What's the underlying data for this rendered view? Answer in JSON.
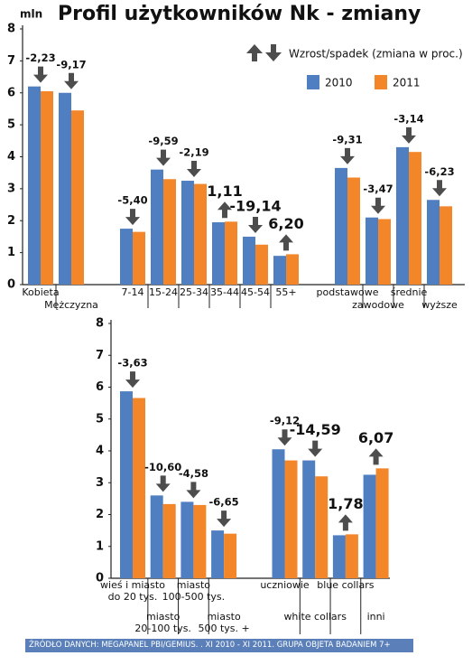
{
  "chart_data": [
    {
      "type": "bar",
      "title": "Profil użytkowników Nk - zmiany",
      "y_unit": "mln",
      "legend_title": "Wzrost/spadek (zmiana w proc.)",
      "categories": [
        "Kobieta",
        "Mężczyzna",
        null,
        "7-14",
        "15-24",
        "25-34",
        "35-44",
        "45-54",
        "55+",
        null,
        "podstawowe",
        "zawodowe",
        "średnie",
        "wyższe"
      ],
      "series": [
        {
          "name": "2010",
          "color": "#4f7fc0",
          "values": [
            6.2,
            6.0,
            null,
            1.75,
            3.6,
            3.25,
            1.95,
            1.5,
            0.9,
            null,
            3.65,
            2.1,
            4.3,
            2.65
          ]
        },
        {
          "name": "2011",
          "color": "#f4862a",
          "values": [
            6.05,
            5.45,
            null,
            1.65,
            3.3,
            3.15,
            1.97,
            1.25,
            0.95,
            null,
            3.35,
            2.05,
            4.15,
            2.45
          ]
        }
      ],
      "annotations": [
        {
          "value": -2.23,
          "label": "-2,23"
        },
        {
          "value": -9.17,
          "label": "-9,17"
        },
        null,
        {
          "value": -5.4,
          "label": "-5,40"
        },
        {
          "value": -9.59,
          "label": "-9,59"
        },
        {
          "value": -2.19,
          "label": "-2,19"
        },
        {
          "value": 1.11,
          "label": "1,11",
          "bold": true
        },
        {
          "value": -19.14,
          "label": "-19,14",
          "bold": true
        },
        {
          "value": 6.2,
          "label": "6,20",
          "bold": true
        },
        null,
        {
          "value": -9.31,
          "label": "-9,31"
        },
        {
          "value": -3.47,
          "label": "-3,47"
        },
        {
          "value": -3.14,
          "label": "-3,14"
        },
        {
          "value": -6.23,
          "label": "-6,23"
        }
      ],
      "ylim": [
        0,
        8
      ],
      "yticks": [
        0,
        1,
        2,
        3,
        4,
        5,
        6,
        7,
        8
      ]
    },
    {
      "type": "bar",
      "categories": [
        "wieś i miasto\ndo 20 tys.",
        "miasto\n20-100 tys.",
        "miasto\n100-500 tys.",
        "miasto\n500 tys. +",
        null,
        "uczniowie",
        "white collars",
        "blue collars",
        "inni"
      ],
      "series": [
        {
          "color": "#4f7fc0",
          "values": [
            5.87,
            2.6,
            2.4,
            1.5,
            null,
            4.05,
            3.7,
            1.35,
            3.25
          ]
        },
        {
          "color": "#f4862a",
          "values": [
            5.66,
            2.33,
            2.3,
            1.4,
            null,
            3.7,
            3.2,
            1.38,
            3.45
          ]
        }
      ],
      "annotations": [
        {
          "value": -3.63,
          "label": "-3,63"
        },
        {
          "value": -10.6,
          "label": "-10,60"
        },
        {
          "value": -4.58,
          "label": "-4,58"
        },
        {
          "value": -6.65,
          "label": "-6,65"
        },
        null,
        {
          "value": -9.12,
          "label": "-9,12"
        },
        {
          "value": -14.59,
          "label": "-14,59",
          "bold": true
        },
        {
          "value": 1.78,
          "label": "1,78",
          "bold": true
        },
        {
          "value": 6.07,
          "label": "6,07",
          "bold": true
        }
      ],
      "ylim": [
        0,
        8
      ],
      "yticks": [
        0,
        1,
        2,
        3,
        4,
        5,
        6,
        7,
        8
      ]
    }
  ],
  "source": "ŹRÓDŁO DANYCH: MEGAPANEL PBI/GEMIUS. . XI 2010 - XI 2011. GRUPA OBJETA BADANIEM 7+"
}
